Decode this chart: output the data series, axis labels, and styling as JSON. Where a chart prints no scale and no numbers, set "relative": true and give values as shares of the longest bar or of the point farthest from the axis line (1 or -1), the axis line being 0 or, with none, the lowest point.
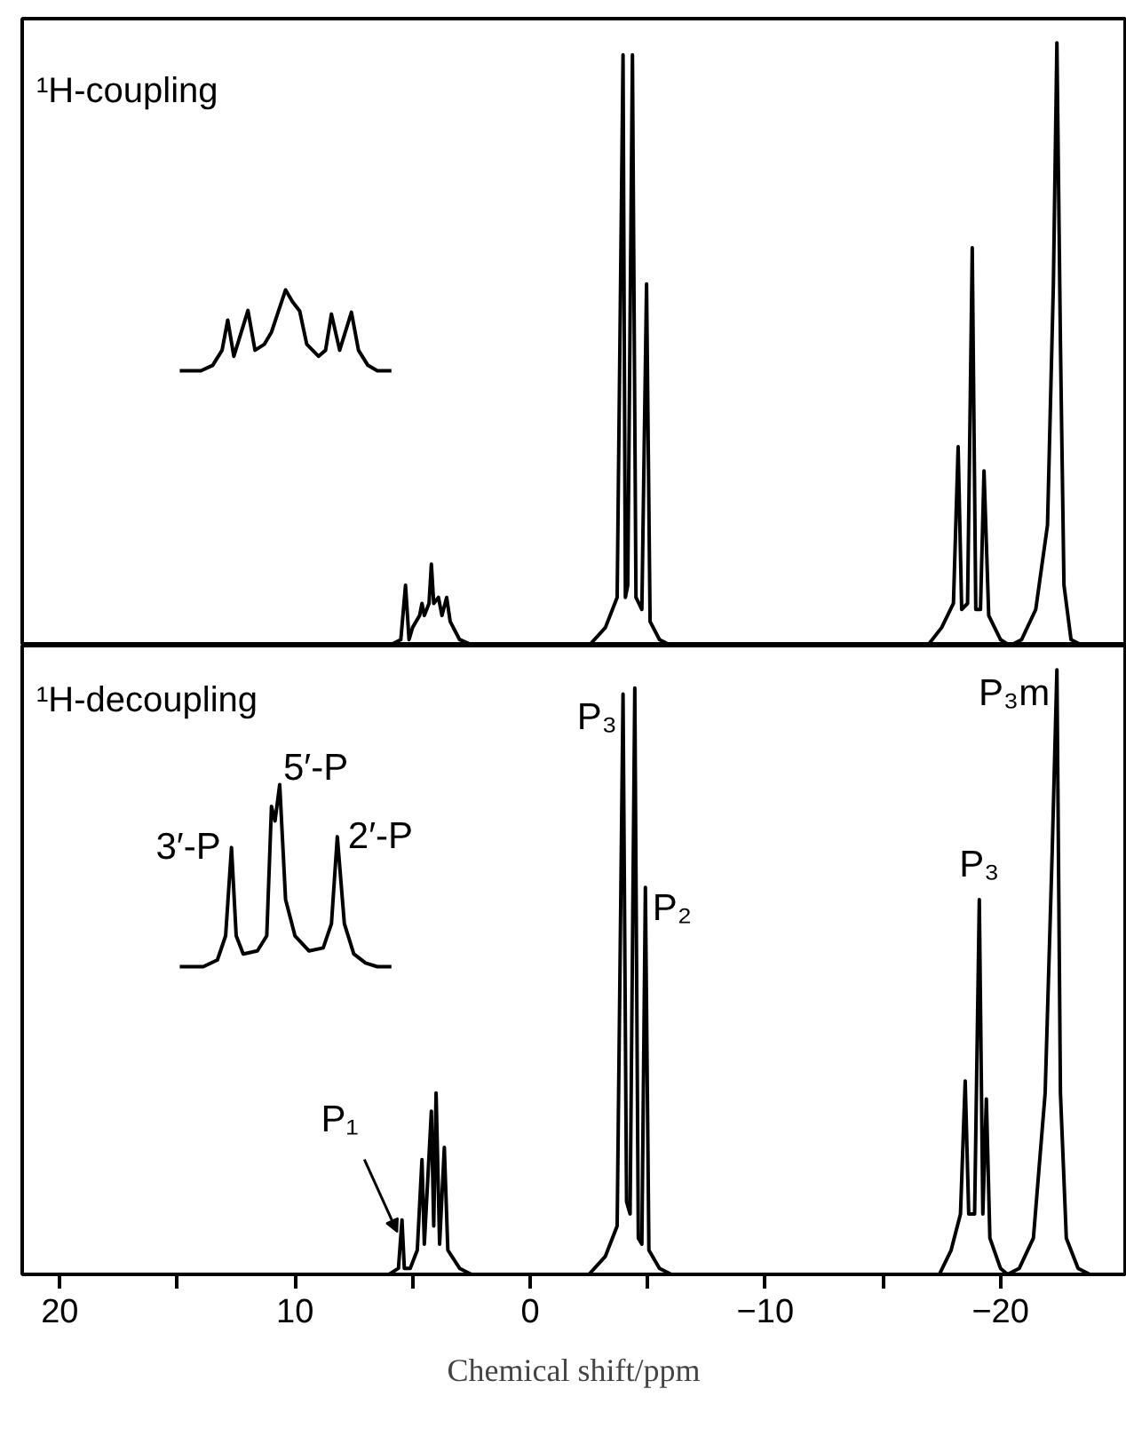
{
  "chart_data": [
    {
      "type": "line",
      "relative": true,
      "xlim": [
        21.6,
        -25.3
      ],
      "tick_labels": false,
      "annotations": [
        "¹H-coupling"
      ],
      "series": [
        {
          "color": "#000000",
          "x": [
            21.6,
            6.0,
            5.5,
            5.3,
            5.15,
            5.0,
            4.7,
            4.6,
            4.5,
            4.3,
            4.2,
            4.1,
            3.9,
            3.75,
            3.55,
            3.4,
            3.0,
            2.4,
            -2.5,
            -3.2,
            -3.7,
            -3.95,
            -4.05,
            -4.15,
            -4.35,
            -4.5,
            -4.75,
            -4.95,
            -5.1,
            -5.5,
            -6,
            -16.9,
            -17.5,
            -18.0,
            -18.2,
            -18.35,
            -18.6,
            -18.8,
            -18.95,
            -19.15,
            -19.3,
            -19.5,
            -20.0,
            -20.4,
            -20.9,
            -21.5,
            -22.0,
            -22.25,
            -22.4,
            -22.55,
            -22.7,
            -23.0,
            -23.5,
            -25.3
          ],
          "values": [
            0,
            0,
            0.01,
            0.1,
            0.01,
            0.03,
            0.05,
            0.07,
            0.05,
            0.07,
            0.135,
            0.07,
            0.08,
            0.05,
            0.08,
            0.04,
            0.01,
            0,
            0,
            0.03,
            0.08,
            0.98,
            0.08,
            0.1,
            0.98,
            0.08,
            0.06,
            0.6,
            0.04,
            0.01,
            0,
            0,
            0.03,
            0.07,
            0.33,
            0.06,
            0.07,
            0.66,
            0.06,
            0.06,
            0.29,
            0.05,
            0.01,
            0,
            0.01,
            0.06,
            0.2,
            0.6,
            1.0,
            0.5,
            0.1,
            0.01,
            0,
            0
          ]
        },
        {
          "color": "#000000",
          "x": [
            14.9,
            14.0,
            13.5,
            13.1,
            12.86,
            12.6,
            12.0,
            11.7,
            11.3,
            11.0,
            10.7,
            10.4,
            10.1,
            9.8,
            9.5,
            9.0,
            8.7,
            8.45,
            8.1,
            7.6,
            7.3,
            6.9,
            6.5,
            5.9
          ],
          "values": [
            0.456,
            0.456,
            0.465,
            0.49,
            0.54,
            0.48,
            0.556,
            0.49,
            0.5,
            0.52,
            0.555,
            0.59,
            0.57,
            0.555,
            0.5,
            0.48,
            0.49,
            0.55,
            0.49,
            0.553,
            0.49,
            0.465,
            0.456,
            0.456
          ]
        }
      ]
    },
    {
      "type": "line",
      "relative": true,
      "xlim": [
        21.6,
        -25.3
      ],
      "xticks": [
        20,
        {
          "value": 15,
          "label": null
        },
        10,
        {
          "value": 5,
          "label": null
        },
        0,
        {
          "value": -5,
          "label": null
        },
        -10,
        {
          "value": -15,
          "label": null
        },
        -20
      ],
      "tick_labels": "x",
      "xlabel": "Chemical shift/ppm",
      "annotations": [
        "¹H-decoupling",
        {
          "text": "P₃",
          "x": -4.0,
          "y": 0.96
        },
        {
          "text": "P₂",
          "x": -4.9,
          "y": 0.64
        },
        {
          "text": "P₃",
          "x": -19.1,
          "y": 0.62
        },
        {
          "text": "P₃m",
          "x": -22.4,
          "y": 1.0
        },
        {
          "text": "P₁",
          "x": 5.45,
          "y": 0.09
        },
        {
          "text": "3′-P",
          "x": 12.7,
          "y": 0.706
        },
        {
          "text": "5′-P",
          "x": 10.65,
          "y": 0.81
        },
        {
          "text": "2′-P",
          "x": 8.2,
          "y": 0.724
        }
      ],
      "series": [
        {
          "color": "#000000",
          "x": [
            21.6,
            6.0,
            5.6,
            5.45,
            5.35,
            5.1,
            4.8,
            4.6,
            4.5,
            4.2,
            4.1,
            4.0,
            3.85,
            3.65,
            3.5,
            3.0,
            2.5,
            -2.5,
            -3.2,
            -3.7,
            -3.95,
            -4.1,
            -4.25,
            -4.45,
            -4.6,
            -4.75,
            -4.9,
            -5.05,
            -5.5,
            -6,
            -17.4,
            -17.9,
            -18.3,
            -18.5,
            -18.65,
            -18.9,
            -19.1,
            -19.25,
            -19.4,
            -19.55,
            -20.0,
            -20.3,
            -20.8,
            -21.4,
            -21.9,
            -22.2,
            -22.4,
            -22.55,
            -22.8,
            -23.3,
            -23.8,
            -25.3
          ],
          "values": [
            0,
            0,
            0.01,
            0.09,
            0.01,
            0.01,
            0.04,
            0.19,
            0.05,
            0.27,
            0.08,
            0.3,
            0.05,
            0.21,
            0.04,
            0.01,
            0,
            0,
            0.03,
            0.08,
            0.96,
            0.12,
            0.1,
            0.97,
            0.06,
            0.05,
            0.64,
            0.04,
            0.01,
            0,
            0,
            0.04,
            0.1,
            0.32,
            0.1,
            0.1,
            0.62,
            0.1,
            0.29,
            0.06,
            0.01,
            0,
            0.01,
            0.06,
            0.3,
            0.7,
            1.0,
            0.3,
            0.06,
            0.01,
            0,
            0
          ]
        },
        {
          "color": "#000000",
          "x": [
            14.9,
            13.9,
            13.3,
            12.95,
            12.7,
            12.5,
            12.2,
            11.6,
            11.2,
            11.0,
            10.85,
            10.65,
            10.4,
            10.0,
            9.4,
            8.8,
            8.45,
            8.2,
            7.9,
            7.5,
            7.0,
            6.5,
            5.9
          ],
          "values": [
            0.509,
            0.509,
            0.52,
            0.56,
            0.706,
            0.56,
            0.53,
            0.535,
            0.56,
            0.774,
            0.75,
            0.81,
            0.62,
            0.56,
            0.535,
            0.54,
            0.58,
            0.724,
            0.58,
            0.53,
            0.515,
            0.509,
            0.509
          ]
        }
      ]
    }
  ]
}
